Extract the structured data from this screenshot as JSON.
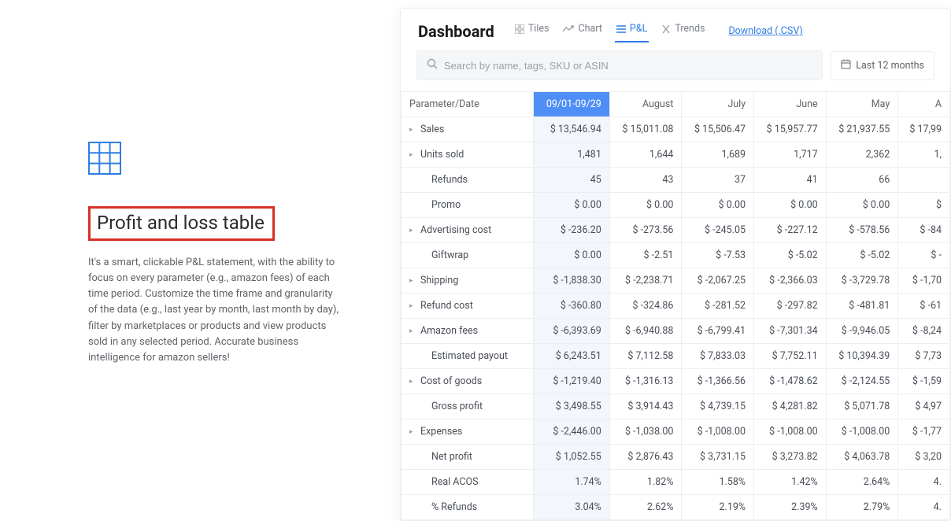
{
  "feature": {
    "title": "Profit and loss table",
    "description": "It's a smart, clickable P&L statement, with the ability to focus on every parameter (e.g., amazon fees) of each time period. Customize the time frame and granularity of the data (e.g., last year by month, last month by day), filter by marketplaces or products and view products sold in any selected period. Accurate business intelligence for amazon sellers!"
  },
  "dashboard": {
    "title": "Dashboard",
    "tabs": {
      "tiles": "Tiles",
      "chart": "Chart",
      "pl": "P&L",
      "trends": "Trends"
    },
    "download": "Download (.CSV)",
    "search_placeholder": "Search by name, tags, SKU or ASIN",
    "date_range": "Last 12 months"
  },
  "table": {
    "header_param": "Parameter/Date",
    "columns": [
      "09/01-09/29",
      "August",
      "July",
      "June",
      "May",
      "A"
    ],
    "rows": [
      {
        "label": "Sales",
        "expandable": true,
        "indent": false,
        "cells": [
          "$ 13,546.94",
          "$ 15,011.08",
          "$ 15,506.47",
          "$ 15,957.77",
          "$ 21,937.55",
          "$ 17,99"
        ]
      },
      {
        "label": "Units sold",
        "expandable": true,
        "indent": false,
        "cells": [
          "1,481",
          "1,644",
          "1,689",
          "1,717",
          "2,362",
          "1,"
        ]
      },
      {
        "label": "Refunds",
        "expandable": false,
        "indent": true,
        "cells": [
          "45",
          "43",
          "37",
          "41",
          "66",
          ""
        ]
      },
      {
        "label": "Promo",
        "expandable": false,
        "indent": true,
        "cells": [
          "$ 0.00",
          "$ 0.00",
          "$ 0.00",
          "$ 0.00",
          "$ 0.00",
          "$ "
        ]
      },
      {
        "label": "Advertising cost",
        "expandable": true,
        "indent": false,
        "cells": [
          "$ -236.20",
          "$ -273.56",
          "$ -245.05",
          "$ -227.12",
          "$ -578.56",
          "$ -84"
        ]
      },
      {
        "label": "Giftwrap",
        "expandable": false,
        "indent": true,
        "cells": [
          "$ 0.00",
          "$ -2.51",
          "$ -7.53",
          "$ -5.02",
          "$ -5.02",
          "$ -"
        ]
      },
      {
        "label": "Shipping",
        "expandable": true,
        "indent": false,
        "cells": [
          "$ -1,838.30",
          "$ -2,238.71",
          "$ -2,067.25",
          "$ -2,366.03",
          "$ -3,729.78",
          "$ -1,70"
        ]
      },
      {
        "label": "Refund cost",
        "expandable": true,
        "indent": false,
        "cells": [
          "$ -360.80",
          "$ -324.86",
          "$ -281.52",
          "$ -297.82",
          "$ -481.81",
          "$ -61"
        ]
      },
      {
        "label": "Amazon fees",
        "expandable": true,
        "indent": false,
        "cells": [
          "$ -6,393.69",
          "$ -6,940.88",
          "$ -6,799.41",
          "$ -7,301.34",
          "$ -9,946.05",
          "$ -8,24"
        ]
      },
      {
        "label": "Estimated payout",
        "expandable": false,
        "indent": true,
        "cells": [
          "$ 6,243.51",
          "$ 7,112.58",
          "$ 7,833.03",
          "$ 7,752.11",
          "$ 10,394.39",
          "$ 7,73"
        ]
      },
      {
        "label": "Cost of goods",
        "expandable": true,
        "indent": false,
        "cells": [
          "$ -1,219.40",
          "$ -1,316.13",
          "$ -1,366.56",
          "$ -1,478.62",
          "$ -2,124.55",
          "$ -1,59"
        ]
      },
      {
        "label": "Gross profit",
        "expandable": false,
        "indent": true,
        "cells": [
          "$ 3,498.55",
          "$ 3,914.43",
          "$ 4,739.15",
          "$ 4,281.82",
          "$ 5,071.78",
          "$ 4,97"
        ]
      },
      {
        "label": "Expenses",
        "expandable": true,
        "indent": false,
        "cells": [
          "$ -2,446.00",
          "$ -1,038.00",
          "$ -1,008.00",
          "$ -1,008.00",
          "$ -1,008.00",
          "$ -1,77"
        ]
      },
      {
        "label": "Net profit",
        "expandable": false,
        "indent": true,
        "cells": [
          "$ 1,052.55",
          "$ 2,876.43",
          "$ 3,731.15",
          "$ 3,273.82",
          "$ 4,063.78",
          "$ 3,20"
        ]
      },
      {
        "label": "Real ACOS",
        "expandable": false,
        "indent": true,
        "cells": [
          "1.74%",
          "1.82%",
          "1.58%",
          "1.42%",
          "2.64%",
          "4."
        ]
      },
      {
        "label": "% Refunds",
        "expandable": false,
        "indent": true,
        "cells": [
          "3.04%",
          "2.62%",
          "2.19%",
          "2.39%",
          "2.79%",
          "4."
        ]
      }
    ]
  },
  "colors": {
    "accent": "#2f7de1",
    "highlight_col_header": "#4f8ef7",
    "highlight_col_bg": "#f3f6fb",
    "border": "#eceef2",
    "text_muted": "#5f6368",
    "callout_border": "#d93025"
  }
}
